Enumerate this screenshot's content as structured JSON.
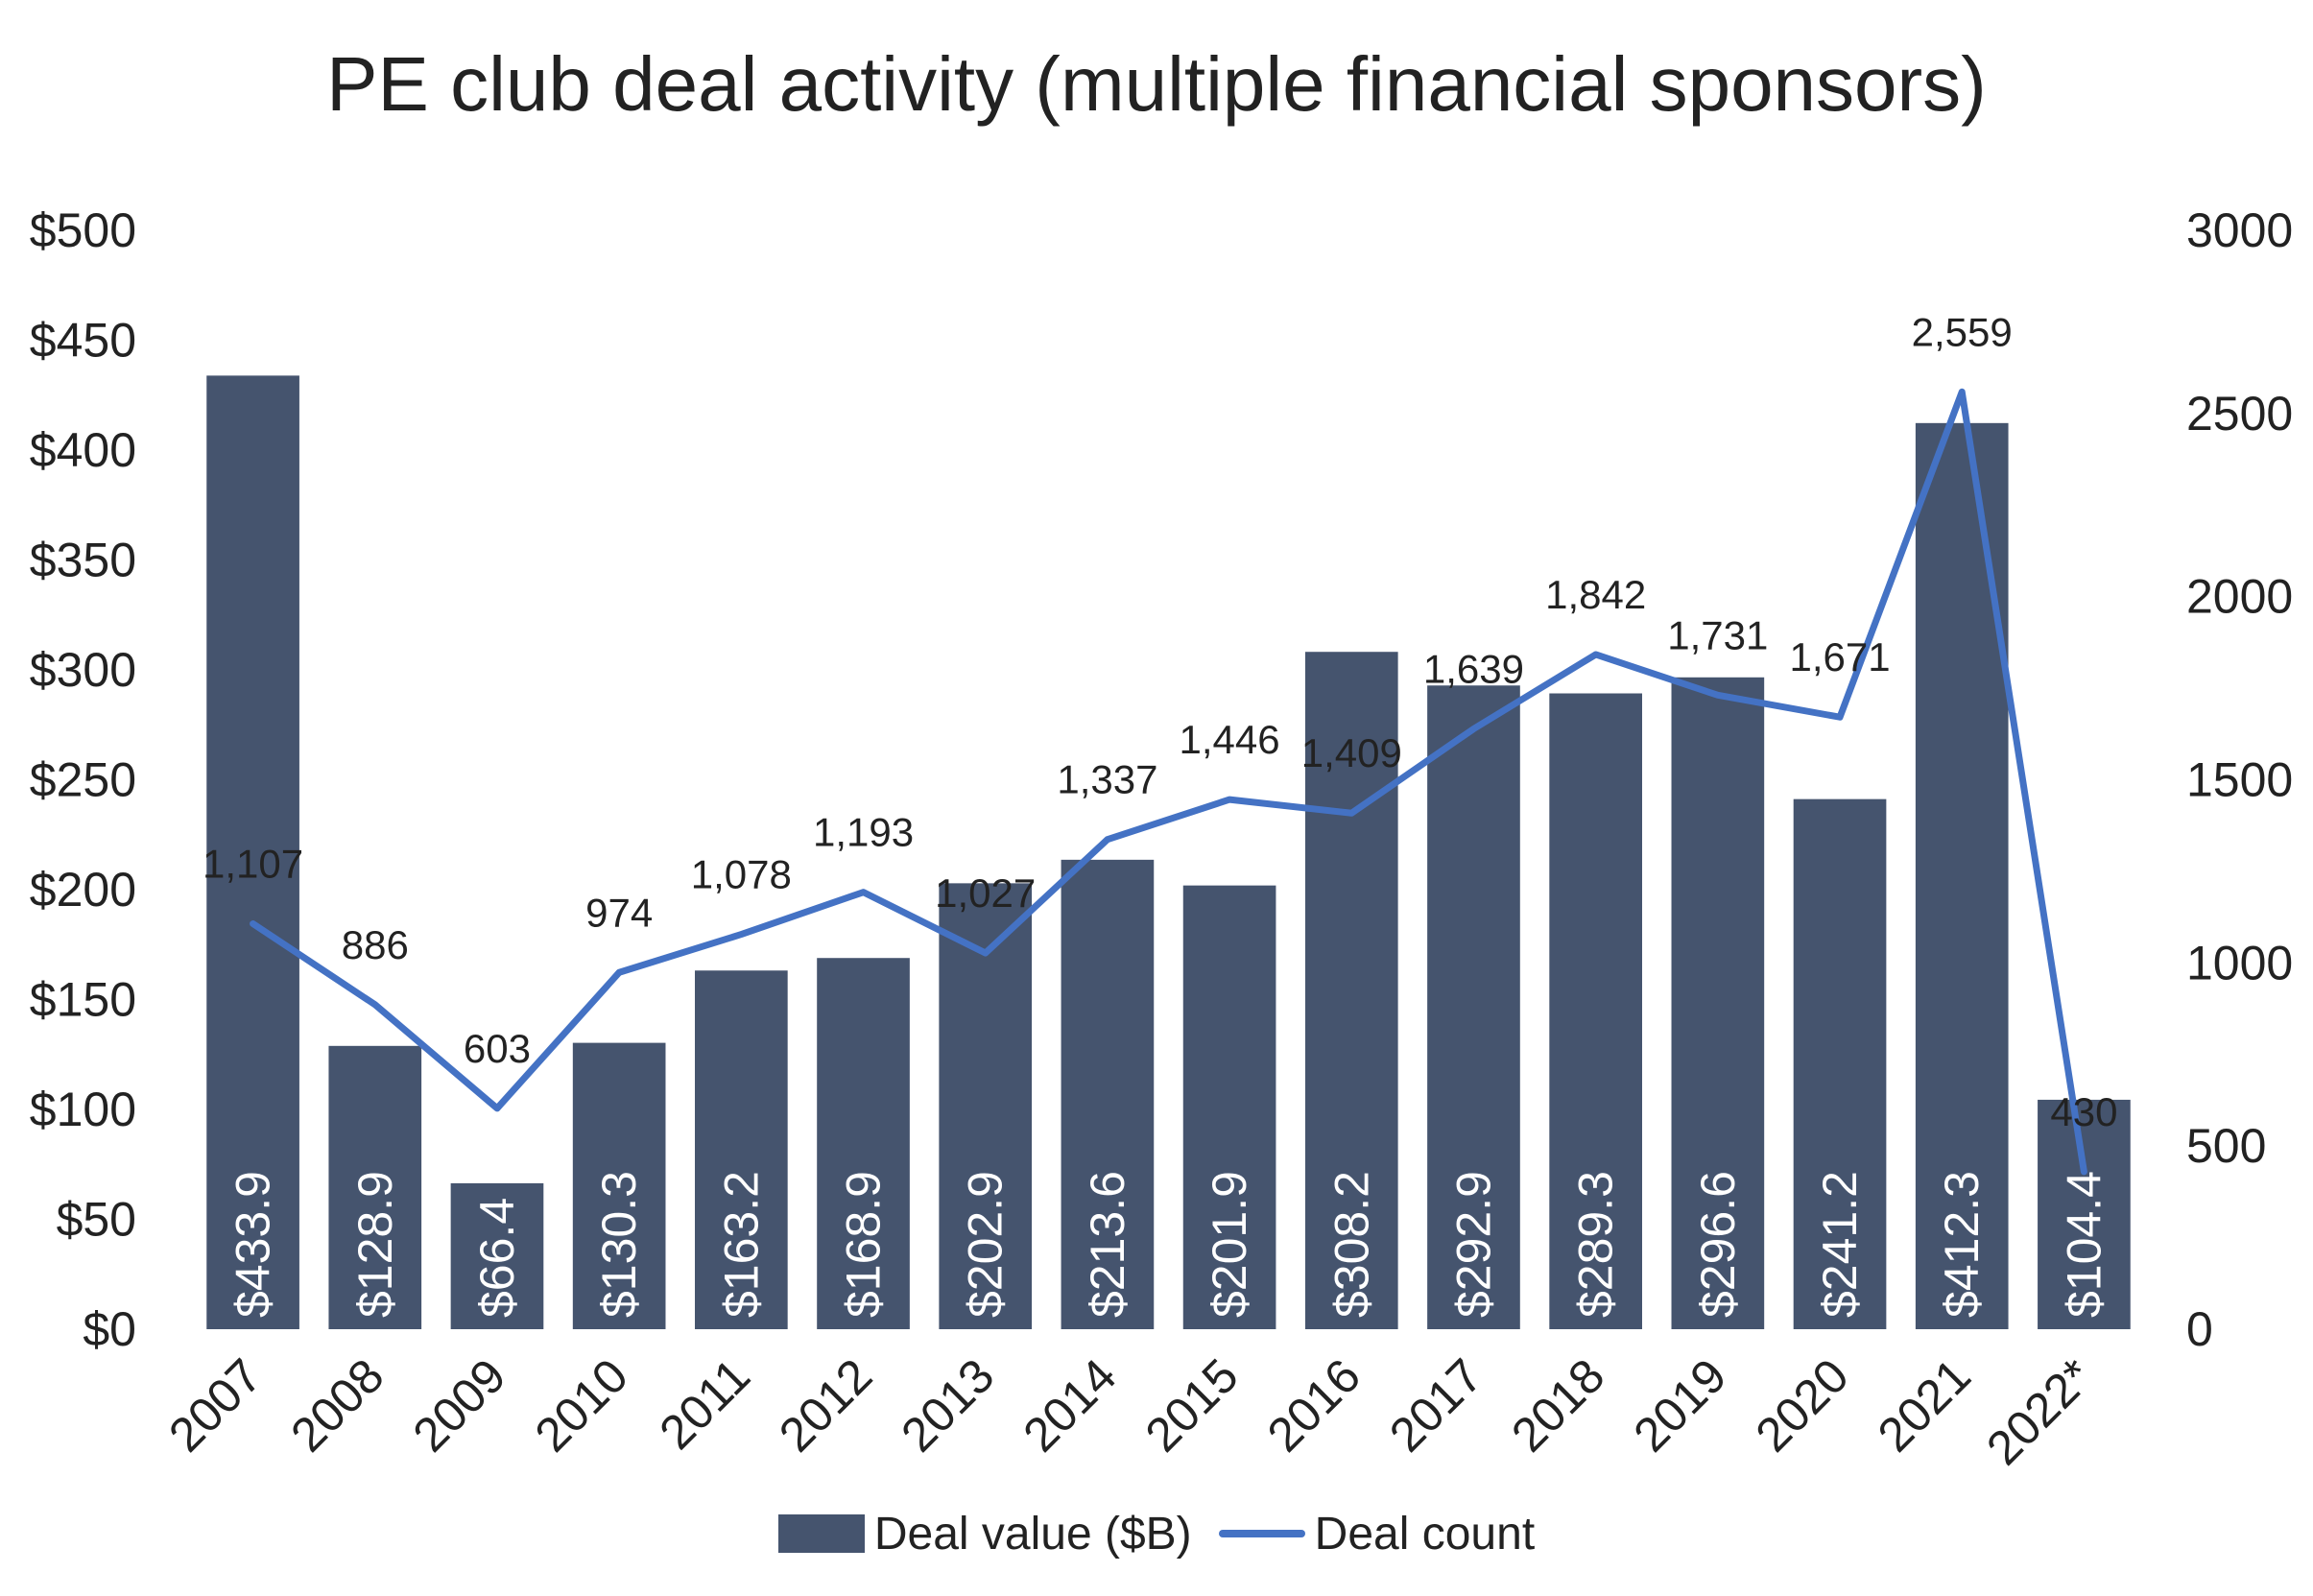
{
  "chart_data": {
    "type": "bar+line",
    "title": "PE club deal activity (multiple financial sponsors)",
    "categories": [
      "2007",
      "2008",
      "2009",
      "2010",
      "2011",
      "2012",
      "2013",
      "2014",
      "2015",
      "2016",
      "2017",
      "2018",
      "2019",
      "2020",
      "2021",
      "2022*"
    ],
    "series": [
      {
        "name": "Deal value ($B)",
        "type": "bar",
        "axis": "left",
        "color": "#45546e",
        "values": [
          433.9,
          128.9,
          66.4,
          130.3,
          163.2,
          168.9,
          202.9,
          213.6,
          201.9,
          308.2,
          292.9,
          289.3,
          296.6,
          241.2,
          412.3,
          104.4
        ],
        "labels": [
          "$433.9",
          "$128.9",
          "$66.4",
          "$130.3",
          "$163.2",
          "$168.9",
          "$202.9",
          "$213.6",
          "$201.9",
          "$308.2",
          "$292.9",
          "$289.3",
          "$296.6",
          "$241.2",
          "$412.3",
          "$104.4"
        ]
      },
      {
        "name": "Deal count",
        "type": "line",
        "axis": "right",
        "color": "#4472c4",
        "values": [
          1107,
          886,
          603,
          974,
          1078,
          1193,
          1027,
          1337,
          1446,
          1409,
          1639,
          1842,
          1731,
          1671,
          2559,
          430
        ],
        "labels": [
          "1,107",
          "886",
          "603",
          "974",
          "1,078",
          "1,193",
          "1,027",
          "1,337",
          "1,446",
          "1,409",
          "1,639",
          "1,842",
          "1,731",
          "1,671",
          "2,559",
          "430"
        ]
      }
    ],
    "y_left": {
      "ylim": [
        0,
        500
      ],
      "ticks": [
        0,
        50,
        100,
        150,
        200,
        250,
        300,
        350,
        400,
        450,
        500
      ],
      "tick_labels": [
        "$0",
        "$50",
        "$100",
        "$150",
        "$200",
        "$250",
        "$300",
        "$350",
        "$400",
        "$450",
        "$500"
      ]
    },
    "y_right": {
      "ylim": [
        0,
        3000
      ],
      "ticks": [
        0,
        500,
        1000,
        1500,
        2000,
        2500,
        3000
      ],
      "tick_labels": [
        "0",
        "500",
        "1000",
        "1500",
        "2000",
        "2500",
        "3000"
      ]
    },
    "grid": false,
    "legend_position": "bottom"
  }
}
